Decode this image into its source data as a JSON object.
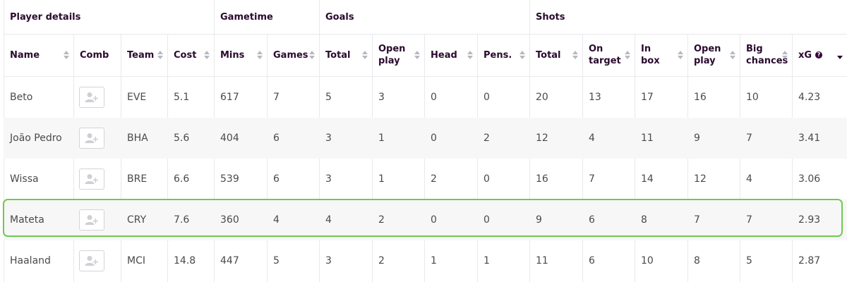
{
  "groups": [
    {
      "label": "Player details"
    },
    {
      "label": "Gametime"
    },
    {
      "label": "Goals"
    },
    {
      "label": "Shots"
    }
  ],
  "columns": [
    {
      "label": "Name",
      "sortable": true
    },
    {
      "label": "Comb",
      "sortable": false
    },
    {
      "label": "Team",
      "sortable": true
    },
    {
      "label": "Cost",
      "sortable": true
    },
    {
      "label": "Mins",
      "sortable": true
    },
    {
      "label": "Games",
      "sortable": true
    },
    {
      "label": "Total",
      "sortable": true
    },
    {
      "label": "Open play",
      "sortable": true
    },
    {
      "label": "Head",
      "sortable": true
    },
    {
      "label": "Pens.",
      "sortable": true
    },
    {
      "label": "Total",
      "sortable": true
    },
    {
      "label": "On target",
      "sortable": true
    },
    {
      "label": "In box",
      "sortable": true
    },
    {
      "label": "Open play",
      "sortable": true
    },
    {
      "label": "Big chances",
      "sortable": true
    },
    {
      "label": "xG",
      "sortable": true,
      "sorted": "desc",
      "help_icon": "question-icon"
    }
  ],
  "rows": [
    {
      "name": "Beto",
      "team": "EVE",
      "cost": "5.1",
      "mins": "617",
      "games": "7",
      "goals_total": "5",
      "goals_open_play": "3",
      "goals_head": "0",
      "goals_pens": "0",
      "shots_total": "20",
      "shots_on_target": "13",
      "shots_in_box": "17",
      "shots_open_play": "16",
      "big_chances": "10",
      "xg": "4.23"
    },
    {
      "name": "João Pedro",
      "team": "BHA",
      "cost": "5.6",
      "mins": "404",
      "games": "6",
      "goals_total": "3",
      "goals_open_play": "1",
      "goals_head": "0",
      "goals_pens": "2",
      "shots_total": "12",
      "shots_on_target": "4",
      "shots_in_box": "11",
      "shots_open_play": "9",
      "big_chances": "7",
      "xg": "3.41"
    },
    {
      "name": "Wissa",
      "team": "BRE",
      "cost": "6.6",
      "mins": "539",
      "games": "6",
      "goals_total": "3",
      "goals_open_play": "1",
      "goals_head": "2",
      "goals_pens": "0",
      "shots_total": "16",
      "shots_on_target": "7",
      "shots_in_box": "14",
      "shots_open_play": "12",
      "big_chances": "4",
      "xg": "3.06"
    },
    {
      "name": "Mateta",
      "team": "CRY",
      "cost": "7.6",
      "mins": "360",
      "games": "4",
      "goals_total": "4",
      "goals_open_play": "2",
      "goals_head": "0",
      "goals_pens": "0",
      "shots_total": "9",
      "shots_on_target": "6",
      "shots_in_box": "8",
      "shots_open_play": "7",
      "big_chances": "7",
      "xg": "2.93",
      "highlighted": true
    },
    {
      "name": "Haaland",
      "team": "MCI",
      "cost": "14.8",
      "mins": "447",
      "games": "5",
      "goals_total": "3",
      "goals_open_play": "2",
      "goals_head": "1",
      "goals_pens": "1",
      "shots_total": "11",
      "shots_on_target": "6",
      "shots_in_box": "10",
      "shots_open_play": "8",
      "big_chances": "5",
      "xg": "2.87"
    }
  ],
  "icons": {
    "comb": "add-user-icon",
    "sort": "sort-arrows-icon"
  },
  "colors": {
    "highlight": "#6ecb4d",
    "header_text": "#2a0a2e",
    "cell_text": "#4a4a4a",
    "alt_row": "#f7f7f7"
  }
}
